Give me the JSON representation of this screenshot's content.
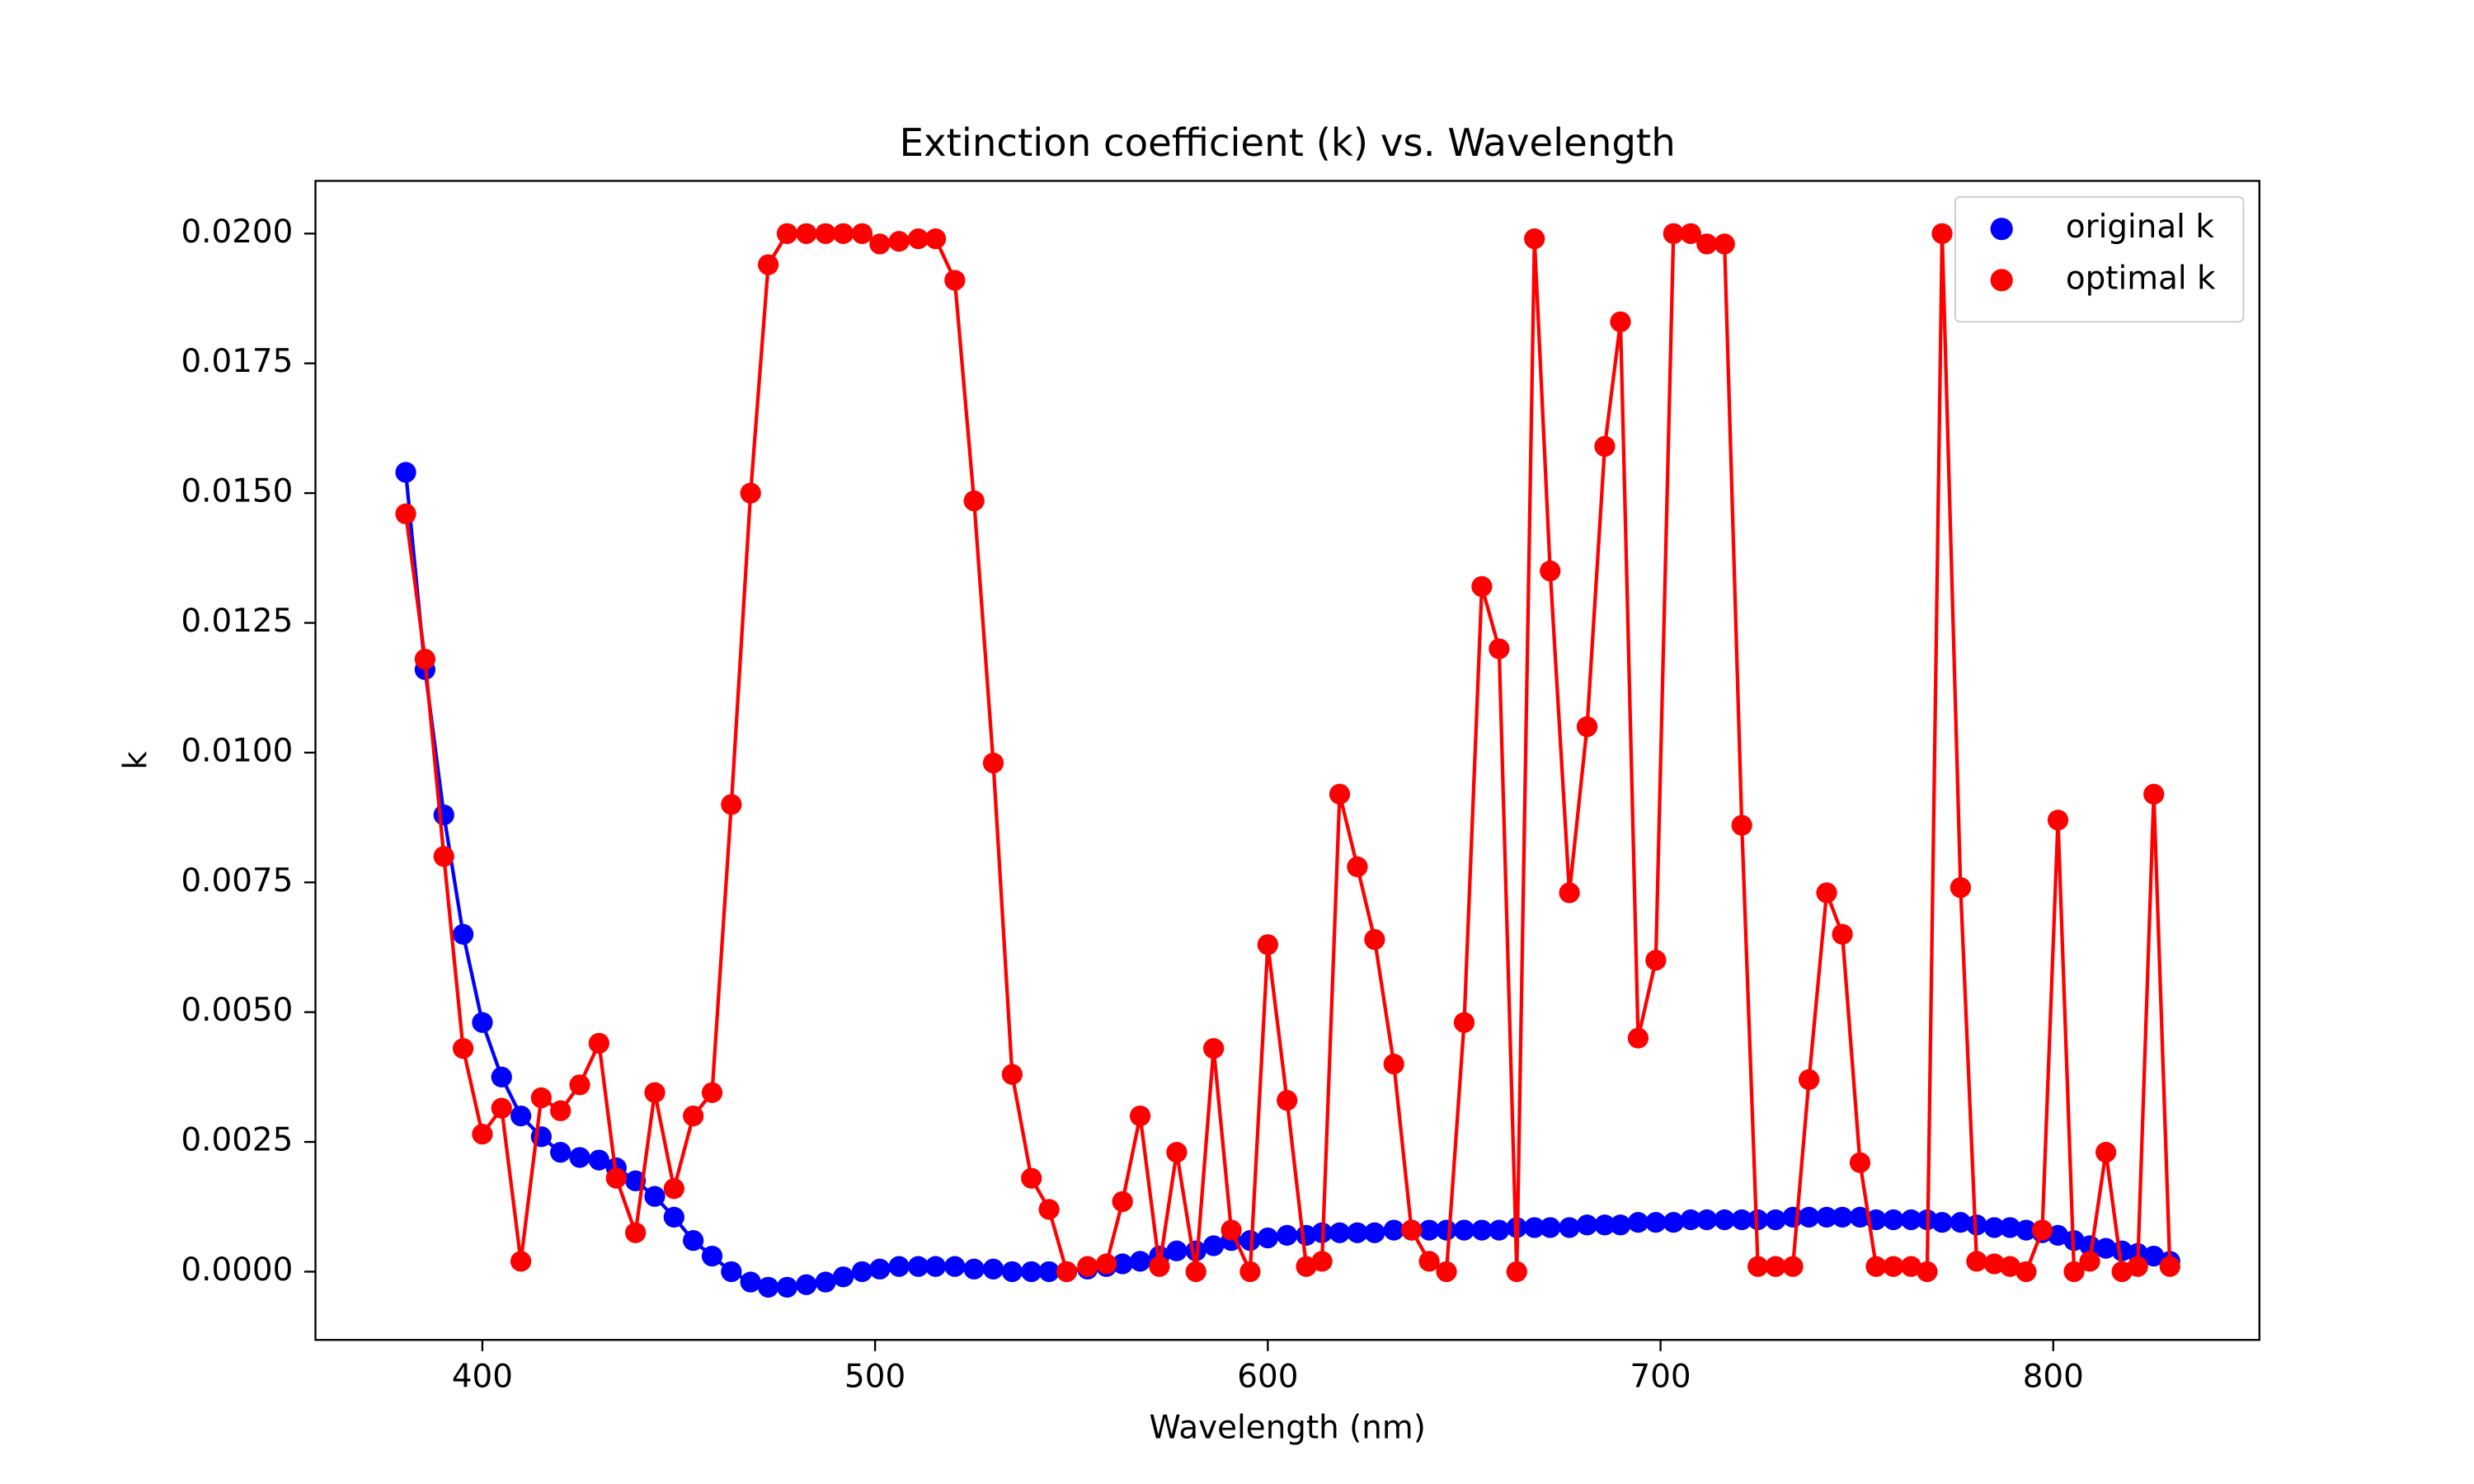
{
  "chart_data": {
    "type": "line",
    "title": "Extinction coefficient (k) vs. Wavelength",
    "x_label": "Wavelength (nm)",
    "y_label": "k",
    "x": [
      380.5,
      385.4,
      390.2,
      395.1,
      400,
      404.9,
      409.8,
      415,
      419.9,
      424.8,
      429.7,
      434.1,
      439,
      443.9,
      448.8,
      453.7,
      458.5,
      463.4,
      468.3,
      472.8,
      477.6,
      482.5,
      487.4,
      491.9,
      496.7,
      501.2,
      506.1,
      511,
      515.4,
      520.3,
      525.2,
      530.1,
      534.9,
      539.8,
      544.3,
      548.8,
      554.1,
      558.9,
      563,
      567.5,
      572.4,
      576.8,
      581.7,
      586.2,
      590.7,
      595.5,
      600,
      604.9,
      609.8,
      613.8,
      618.3,
      622.8,
      627.2,
      632.1,
      636.6,
      641.1,
      645.5,
      650,
      654.5,
      658.9,
      663.4,
      667.9,
      671.9,
      676.8,
      681.3,
      685.8,
      689.8,
      694.3,
      698.8,
      703.3,
      707.7,
      711.8,
      716.3,
      720.7,
      724.8,
      729.3,
      733.7,
      737.8,
      742.3,
      746.3,
      750.8,
      754.9,
      759.3,
      763.8,
      767.9,
      771.7,
      776.4,
      780.5,
      785,
      789,
      793.1,
      797.2,
      801.2,
      805.3,
      809.3,
      813.4,
      817.5,
      821.5,
      825.6,
      829.7
    ],
    "series": [
      {
        "name": "original k",
        "color": "#0000ff",
        "values": [
          0.0154,
          0.0116,
          0.0088,
          0.0065,
          0.0048,
          0.00375,
          0.003,
          0.0026,
          0.0023,
          0.0022,
          0.00215,
          0.002,
          0.00175,
          0.00145,
          0.00105,
          0.0006,
          0.0003,
          0,
          -0.0002,
          -0.0003,
          -0.0003,
          -0.00025,
          -0.0002,
          -0.0001,
          0,
          5e-05,
          0.0001,
          0.0001,
          0.0001,
          0.0001,
          5e-05,
          5e-05,
          0,
          0,
          0,
          0,
          5e-05,
          0.0001,
          0.00015,
          0.0002,
          0.0003,
          0.0004,
          0.0004,
          0.0005,
          0.0006,
          0.0006,
          0.00065,
          0.0007,
          0.0007,
          0.00075,
          0.00075,
          0.00075,
          0.00075,
          0.0008,
          0.0008,
          0.0008,
          0.0008,
          0.0008,
          0.0008,
          0.0008,
          0.00085,
          0.00085,
          0.00085,
          0.00085,
          0.0009,
          0.0009,
          0.0009,
          0.00095,
          0.00095,
          0.00095,
          0.001,
          0.001,
          0.001,
          0.001,
          0.001,
          0.001,
          0.00105,
          0.00105,
          0.00105,
          0.00105,
          0.00105,
          0.001,
          0.001,
          0.001,
          0.001,
          0.00095,
          0.00095,
          0.0009,
          0.00085,
          0.00085,
          0.0008,
          0.00075,
          0.0007,
          0.0006,
          0.0005,
          0.00045,
          0.0004,
          0.00035,
          0.0003,
          0.0002
        ]
      },
      {
        "name": "optimal k",
        "color": "#ff0000",
        "values": [
          0.0146,
          0.0118,
          0.008,
          0.0043,
          0.00265,
          0.00315,
          0.0002,
          0.00335,
          0.0031,
          0.0036,
          0.0044,
          0.0018,
          0.00075,
          0.00345,
          0.0016,
          0.003,
          0.00345,
          0.009,
          0.015,
          0.0194,
          0.02,
          0.02,
          0.02,
          0.02,
          0.02,
          0.0198,
          0.01985,
          0.0199,
          0.0199,
          0.0191,
          0.01485,
          0.0098,
          0.0038,
          0.0018,
          0.0012,
          0,
          0.0001,
          0.00015,
          0.00135,
          0.003,
          0.0001,
          0.0023,
          0,
          0.0043,
          0.0008,
          0,
          0.0063,
          0.0033,
          0.0001,
          0.0002,
          0.0092,
          0.0078,
          0.0064,
          0.004,
          0.0008,
          0.0002,
          0,
          0.0048,
          0.0132,
          0.012,
          0,
          0.0199,
          0.0135,
          0.0073,
          0.0105,
          0.0159,
          0.0183,
          0.0045,
          0.006,
          0.02,
          0.02,
          0.0198,
          0.0198,
          0.0086,
          0.0001,
          0.0001,
          0.0001,
          0.0037,
          0.0073,
          0.0065,
          0.0021,
          0.0001,
          0.0001,
          0.0001,
          0,
          0.02,
          0.0074,
          0.0002,
          0.00015,
          0.0001,
          0,
          0.0008,
          0.0087,
          0,
          0.0002,
          0.0023,
          0,
          0.0001,
          0.0092,
          0.0001
        ]
      }
    ],
    "xlim": [
      357.5,
      852.5
    ],
    "ylim": [
      -0.001315,
      0.021015
    ],
    "xticks": [
      400,
      500,
      600,
      700,
      800
    ],
    "yticks": [
      {
        "value": 0,
        "label": "0.0000"
      },
      {
        "value": 0.0025,
        "label": "0.0025"
      },
      {
        "value": 0.005,
        "label": "0.0050"
      },
      {
        "value": 0.0075,
        "label": "0.0075"
      },
      {
        "value": 0.01,
        "label": "0.0100"
      },
      {
        "value": 0.0125,
        "label": "0.0125"
      },
      {
        "value": 0.015,
        "label": "0.0150"
      },
      {
        "value": 0.0175,
        "label": "0.0175"
      },
      {
        "value": 0.02,
        "label": "0.0200"
      }
    ],
    "grid": false,
    "legend": "upper right"
  }
}
